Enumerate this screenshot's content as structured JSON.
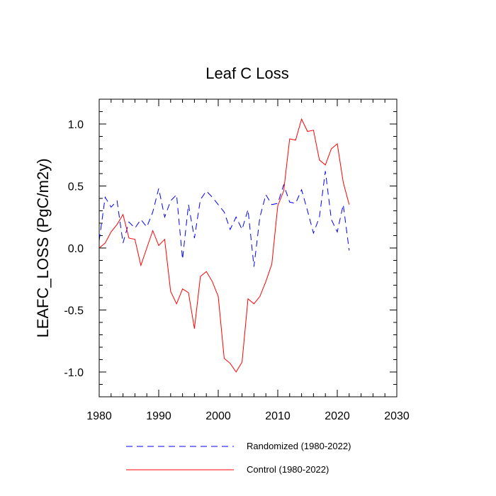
{
  "chart_data": {
    "type": "line",
    "title": "Leaf C Loss",
    "xlabel": "",
    "ylabel": "LEAFC_LOSS  (PgC/m2y)",
    "xlim": [
      1980,
      2030
    ],
    "ylim": [
      -1.2,
      1.2
    ],
    "x_ticks": [
      1980,
      1990,
      2000,
      2010,
      2020,
      2030
    ],
    "x_tick_labels": [
      "1980",
      "1990",
      "2000",
      "2010",
      "2020",
      "2030"
    ],
    "y_ticks": [
      -1.0,
      -0.5,
      0.0,
      0.5,
      1.0
    ],
    "y_tick_labels": [
      "-1.0",
      "-0.5",
      "0.0",
      "0.5",
      "1.0"
    ],
    "grid": false,
    "legend_position": "bottom",
    "x": [
      1980,
      1981,
      1982,
      1983,
      1984,
      1985,
      1986,
      1987,
      1988,
      1989,
      1990,
      1991,
      1992,
      1993,
      1994,
      1995,
      1996,
      1997,
      1998,
      1999,
      2000,
      2001,
      2002,
      2003,
      2004,
      2005,
      2006,
      2007,
      2008,
      2009,
      2010,
      2011,
      2012,
      2013,
      2014,
      2015,
      2016,
      2017,
      2018,
      2019,
      2020,
      2021,
      2022
    ],
    "series": [
      {
        "name": "Randomized (1980-2022)",
        "color": "#0000ff",
        "dash": "dashed",
        "values": [
          0.06,
          0.41,
          0.33,
          0.38,
          0.04,
          0.21,
          0.16,
          0.23,
          0.17,
          0.29,
          0.48,
          0.25,
          0.38,
          0.43,
          -0.09,
          0.35,
          0.08,
          0.39,
          0.46,
          0.41,
          0.35,
          0.29,
          0.15,
          0.25,
          0.15,
          0.31,
          -0.15,
          0.25,
          0.43,
          0.35,
          0.36,
          0.51,
          0.37,
          0.36,
          0.47,
          0.3,
          0.12,
          0.25,
          0.62,
          0.23,
          0.13,
          0.35,
          -0.02
        ]
      },
      {
        "name": "Control (1980-2022)",
        "color": "#ff0000",
        "dash": "solid",
        "values": [
          0.0,
          0.04,
          0.13,
          0.19,
          0.27,
          0.08,
          0.07,
          -0.14,
          0.0,
          0.14,
          0.02,
          0.07,
          -0.35,
          -0.45,
          -0.33,
          -0.36,
          -0.65,
          -0.23,
          -0.19,
          -0.27,
          -0.39,
          -0.89,
          -0.93,
          -1.0,
          -0.92,
          -0.41,
          -0.45,
          -0.39,
          -0.27,
          -0.13,
          0.34,
          0.46,
          0.88,
          0.87,
          1.04,
          0.94,
          0.95,
          0.71,
          0.67,
          0.8,
          0.84,
          0.53,
          0.35
        ]
      }
    ]
  }
}
